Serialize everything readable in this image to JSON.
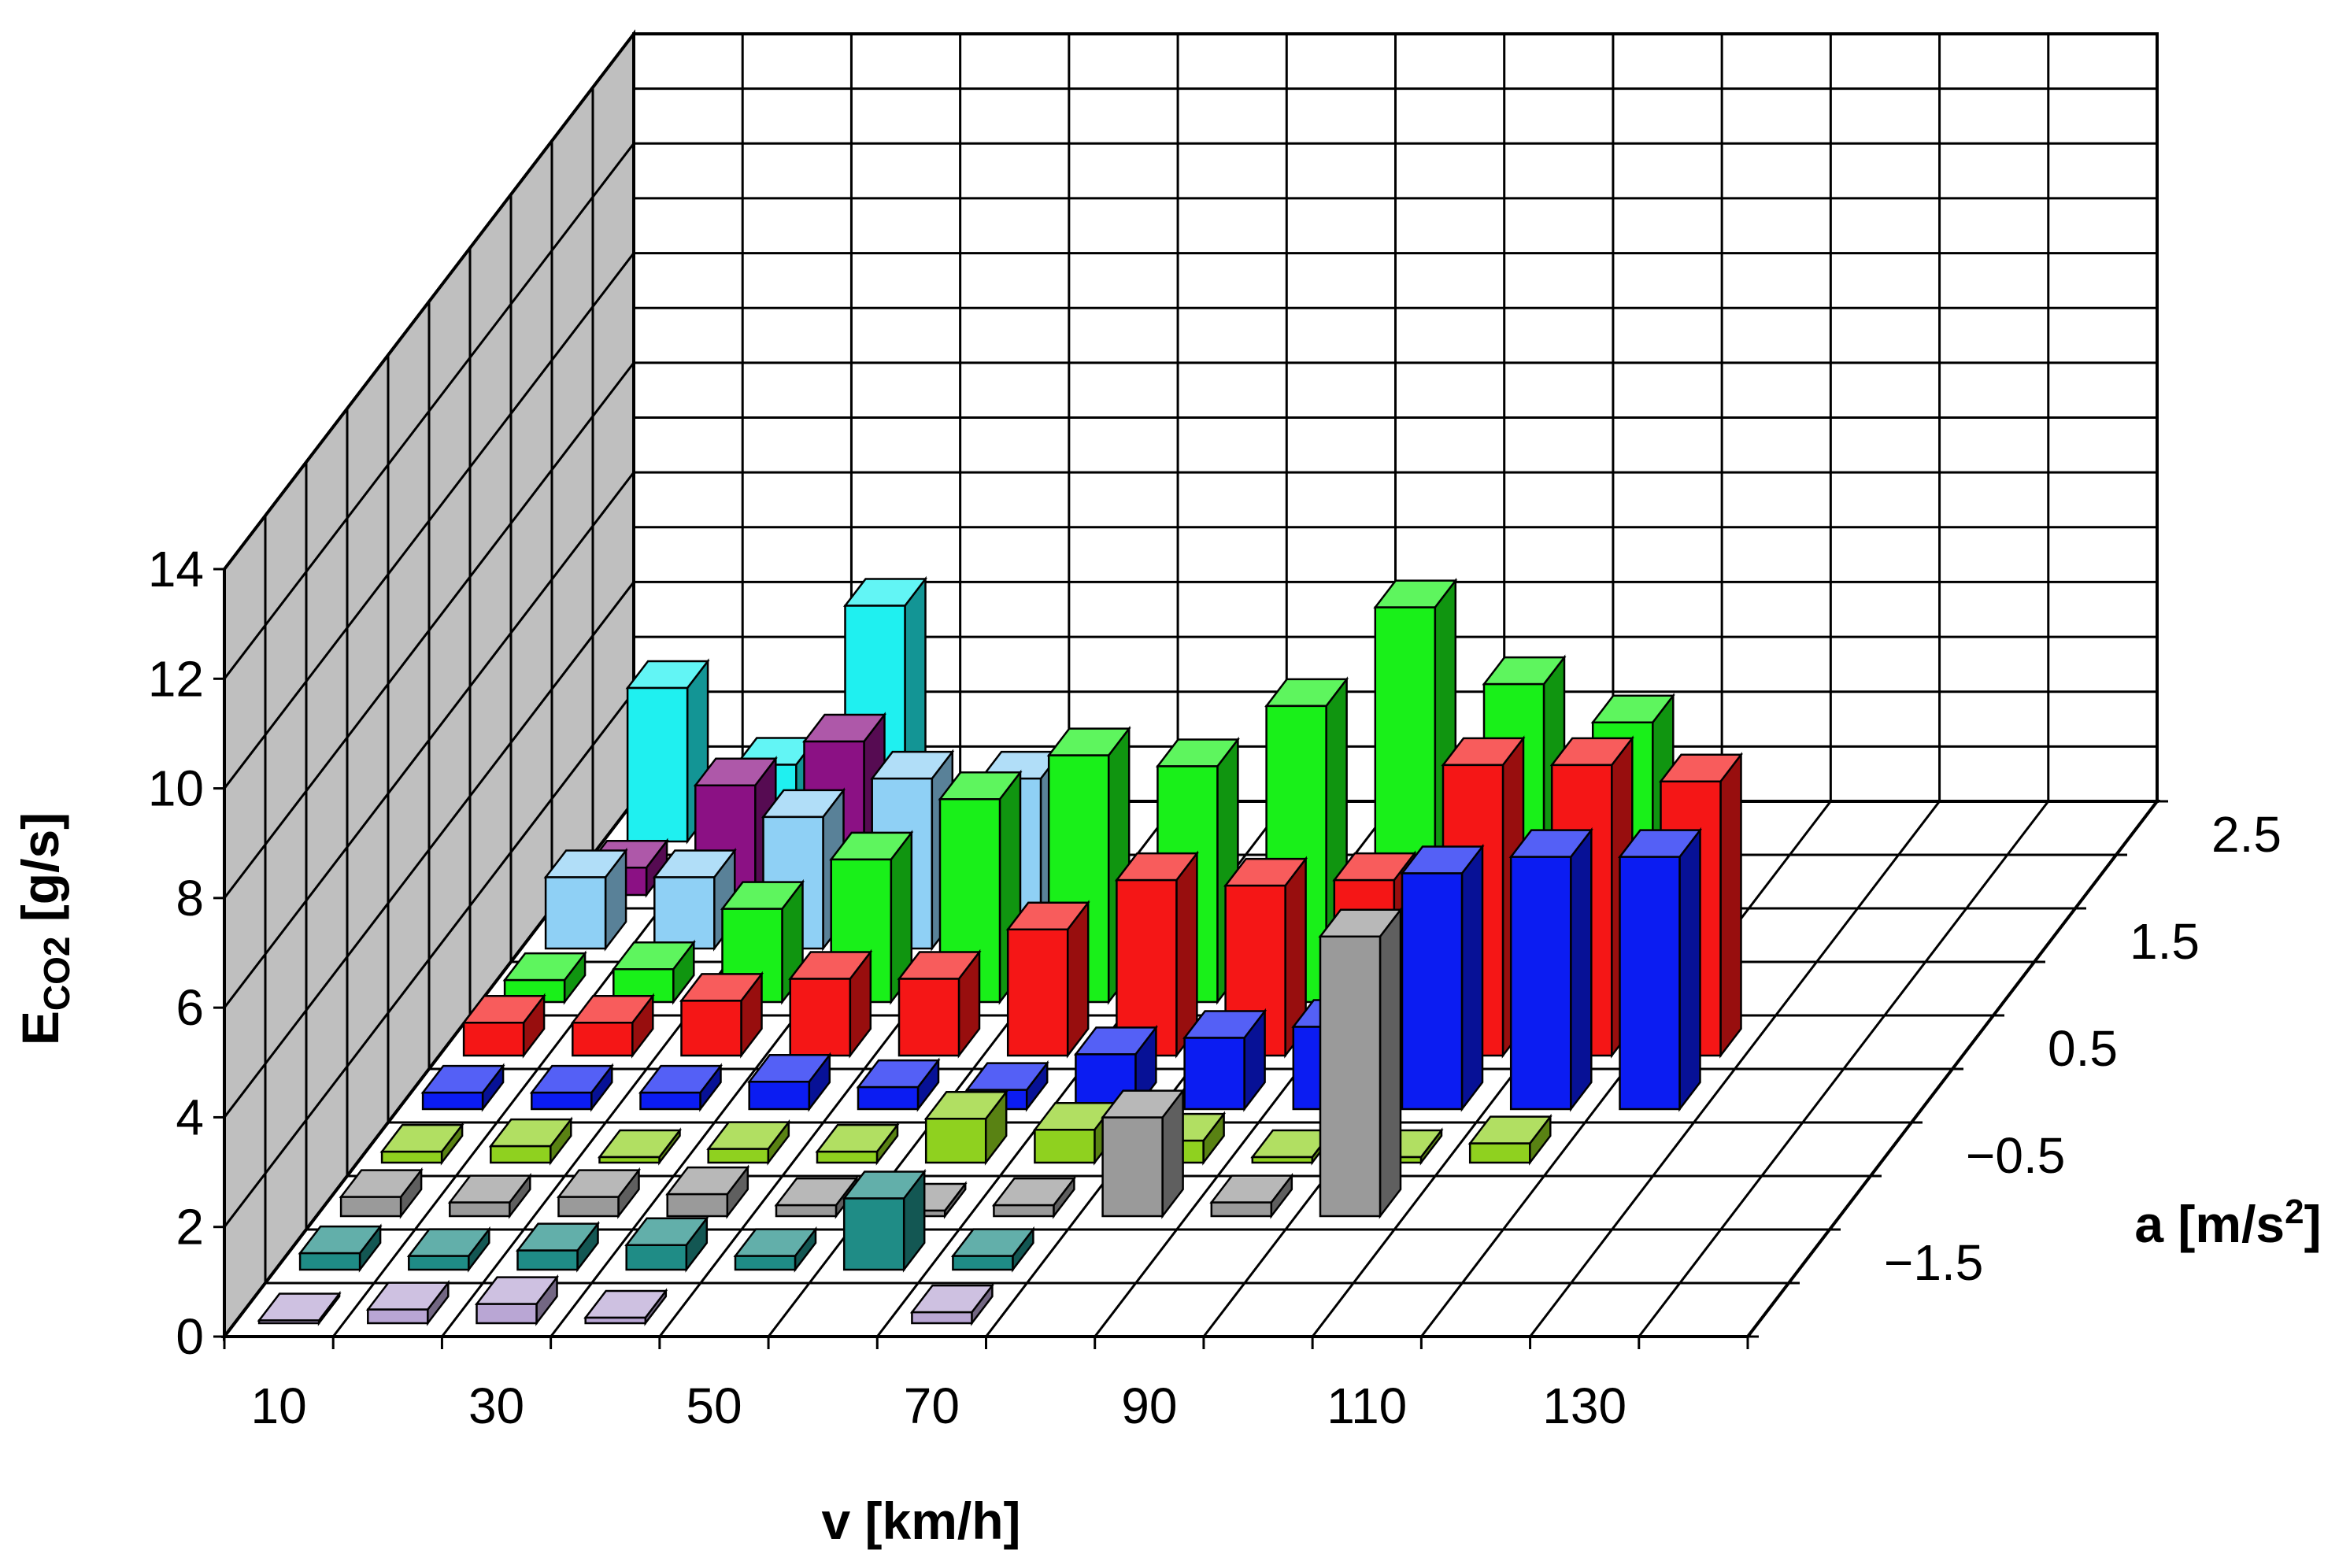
{
  "chart_data": {
    "type": "bar3d",
    "title": "",
    "ylabel_main": "E",
    "ylabel_sub": "CO2",
    "ylabel_rest": " [g/s]",
    "xlabel": "v [km/h]",
    "zlabel_main": "a [m/s",
    "zlabel_sup": "2",
    "zlabel_end": "]",
    "ylim": [
      0,
      14
    ],
    "y_ticks": [
      "0",
      "2",
      "4",
      "6",
      "8",
      "10",
      "12",
      "14"
    ],
    "x_categories": [
      10,
      20,
      30,
      40,
      50,
      60,
      70,
      80,
      90,
      100,
      110,
      120,
      130,
      140
    ],
    "x_tick_labels": [
      "10",
      "30",
      "50",
      "70",
      "90",
      "110",
      "130"
    ],
    "a_levels": [
      -2,
      -1.5,
      -1,
      -0.5,
      0,
      0.5,
      1,
      1.5,
      2,
      2.5
    ],
    "a_tick_labels": [
      "−1.5",
      "−0.5",
      "0.5",
      "1.5",
      "2.5"
    ],
    "series": [
      {
        "a": -2.0,
        "color": "#b9a6d4",
        "values": [
          0.05,
          0.25,
          0.35,
          0.1,
          null,
          null,
          0.2,
          null,
          null,
          null,
          null,
          null,
          null,
          null
        ]
      },
      {
        "a": -1.5,
        "color": "#1f8c86",
        "values": [
          0.3,
          0.25,
          0.35,
          0.45,
          0.25,
          1.3,
          0.25,
          null,
          null,
          null,
          null,
          null,
          null,
          null
        ]
      },
      {
        "a": -1.0,
        "color": "#9a9a9a",
        "values": [
          0.35,
          0.25,
          0.35,
          0.4,
          0.2,
          0.1,
          0.2,
          1.8,
          0.25,
          5.1,
          null,
          null,
          null,
          null
        ]
      },
      {
        "a": -0.5,
        "color": "#8fd11f",
        "values": [
          0.2,
          0.3,
          0.1,
          0.25,
          0.2,
          0.8,
          0.6,
          0.4,
          0.1,
          0.1,
          0.35,
          null,
          null,
          null
        ]
      },
      {
        "a": 0.0,
        "color": "#0b1cf2",
        "values": [
          0.3,
          0.3,
          0.3,
          0.5,
          0.4,
          0.35,
          1.0,
          1.3,
          1.5,
          4.3,
          4.6,
          4.6,
          null,
          null
        ]
      },
      {
        "a": 0.5,
        "color": "#f51616",
        "values": [
          0.6,
          0.6,
          1.0,
          1.4,
          1.4,
          2.3,
          3.2,
          3.1,
          3.2,
          5.3,
          5.3,
          5.0,
          null,
          null
        ]
      },
      {
        "a": 1.0,
        "color": "#19f019",
        "values": [
          0.4,
          0.6,
          1.7,
          2.6,
          3.7,
          4.5,
          4.3,
          5.4,
          7.2,
          5.8,
          5.1,
          null,
          null,
          null
        ]
      },
      {
        "a": 1.5,
        "color": "#8fd0f5",
        "values": [
          1.3,
          1.3,
          2.4,
          3.1,
          3.1,
          1.1,
          null,
          null,
          null,
          null,
          null,
          null,
          null,
          null
        ]
      },
      {
        "a": 2.0,
        "color": "#8b1184",
        "values": [
          0.5,
          2.0,
          2.8,
          1.6,
          null,
          null,
          null,
          null,
          null,
          null,
          null,
          null,
          null,
          null
        ]
      },
      {
        "a": 2.5,
        "color": "#1ff0f0",
        "values": [
          2.8,
          1.4,
          4.3,
          null,
          null,
          null,
          null,
          null,
          null,
          null,
          null,
          null,
          null,
          null
        ]
      }
    ]
  }
}
